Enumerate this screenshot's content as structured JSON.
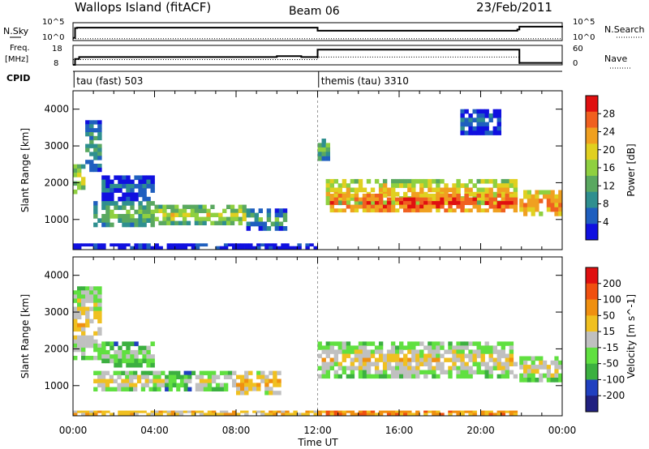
{
  "header": {
    "title": "Wallops Island (fitACF)",
    "beam": "Beam 06",
    "date": "23/Feb/2011"
  },
  "panel_labels": {
    "nsky": "N.Sky",
    "nsearch": "N.Search",
    "nsky_top": "10^5",
    "nsky_bottom": "10^0",
    "freq": "Freq.",
    "freq_unit": "[MHz]",
    "nave": "Nave",
    "cpid": "CPID",
    "freq_top": "18",
    "freq_bottom": "8",
    "nave_top": "60",
    "nave_bottom": "0"
  },
  "colors": {
    "power_scale": [
      "#1010e0",
      "#1f5fbf",
      "#2f8f8f",
      "#5aa860",
      "#8fd040",
      "#e0d020",
      "#f0a020",
      "#f06020",
      "#e01010"
    ],
    "velocity_scale": [
      "#202080",
      "#2040c0",
      "#3cb040",
      "#60e040",
      "#c0c0c0",
      "#f0c020",
      "#f09010",
      "#f05010",
      "#e01010"
    ]
  },
  "chart_data": [
    {
      "type": "line",
      "title": "",
      "x_range_hours": [
        0,
        24
      ],
      "series": [
        {
          "name": "N.Sky",
          "segments": [
            {
              "x": [
                0.0,
                0.1,
                0.2,
                11.9,
                12.0,
                21.8,
                21.9,
                24.0
              ],
              "y_frac": [
                0.15,
                0.7,
                0.72,
                0.72,
                0.55,
                0.62,
                0.78,
                0.74
              ]
            }
          ]
        },
        {
          "name": "N.Search",
          "segments": [
            {
              "x": [
                0.0,
                24.0
              ],
              "y_frac": [
                0.1,
                0.1
              ]
            }
          ]
        }
      ]
    },
    {
      "type": "line",
      "title": "",
      "x_range_hours": [
        0,
        24
      ],
      "series": [
        {
          "name": "Freq.",
          "segments": [
            {
              "x": [
                0.0,
                0.1,
                0.3,
                10.0,
                11.2,
                12.0,
                19.0,
                21.8,
                21.9,
                24.0
              ],
              "y_frac": [
                0.0,
                0.3,
                0.4,
                0.45,
                0.4,
                0.78,
                0.78,
                0.78,
                0.1,
                0.1
              ]
            }
          ]
        },
        {
          "name": "Nave",
          "segments": [
            {
              "x": [
                0.0,
                11.9,
                12.0,
                21.8,
                21.9,
                24.0
              ],
              "y_frac": [
                0.27,
                0.27,
                0.4,
                0.4,
                0.0,
                0.0
              ]
            }
          ]
        }
      ]
    },
    {
      "type": "heatmap",
      "title": "",
      "xlabel": "",
      "ylabel": "Slant Range [km]",
      "x_ticks": [
        "00:00",
        "04:00",
        "08:00",
        "12:00",
        "16:00",
        "20:00",
        "00:00"
      ],
      "y_ticks": [
        "1000",
        "2000",
        "3000",
        "4000"
      ],
      "ylim": [
        180,
        4500
      ],
      "colorbar": {
        "label": "Power [dB]",
        "ticks": [
          "28",
          "24",
          "20",
          "16",
          "12",
          "8",
          "4"
        ]
      },
      "cpid_labels": [
        {
          "x_hours": 0.05,
          "text": "tau (fast) 503"
        },
        {
          "x_hours": 12.05,
          "text": "themis (tau) 3310"
        }
      ],
      "bands": [
        {
          "x0": 0.0,
          "x1": 0.6,
          "r0": 1700,
          "r1": 2500,
          "level": 4
        },
        {
          "x0": 0.6,
          "x1": 1.4,
          "r0": 2300,
          "r1": 3700,
          "level": 2
        },
        {
          "x0": 1.4,
          "x1": 4.0,
          "r0": 1500,
          "r1": 2200,
          "level": 1
        },
        {
          "x0": 1.0,
          "x1": 4.0,
          "r0": 800,
          "r1": 1500,
          "level": 3
        },
        {
          "x0": 4.0,
          "x1": 8.5,
          "r0": 850,
          "r1": 1400,
          "level": 4
        },
        {
          "x0": 8.5,
          "x1": 10.5,
          "r0": 700,
          "r1": 1300,
          "level": 2
        },
        {
          "x0": 0.0,
          "x1": 12.0,
          "r0": 200,
          "r1": 350,
          "level": 1
        },
        {
          "x0": 12.0,
          "x1": 12.6,
          "r0": 2600,
          "r1": 3200,
          "level": 3
        },
        {
          "x0": 12.4,
          "x1": 21.8,
          "r0": 1400,
          "r1": 2100,
          "level": 5
        },
        {
          "x0": 12.6,
          "x1": 21.8,
          "r0": 1200,
          "r1": 1700,
          "level": 7
        },
        {
          "x0": 19.0,
          "x1": 21.0,
          "r0": 3300,
          "r1": 4000,
          "level": 1
        },
        {
          "x0": 21.9,
          "x1": 24.0,
          "r0": 1100,
          "r1": 1800,
          "level": 6
        }
      ]
    },
    {
      "type": "heatmap",
      "title": "",
      "xlabel": "Time UT",
      "ylabel": "Slant Range [km]",
      "x_ticks": [
        "00:00",
        "04:00",
        "08:00",
        "12:00",
        "16:00",
        "20:00",
        "00:00"
      ],
      "y_ticks": [
        "1000",
        "2000",
        "3000",
        "4000"
      ],
      "ylim": [
        180,
        4500
      ],
      "colorbar": {
        "label": "Velocity [m s^-1]",
        "ticks": [
          "200",
          "100",
          "50",
          "15",
          "-15",
          "-50",
          "-100",
          "-200"
        ]
      },
      "bands": [
        {
          "x0": 0.0,
          "x1": 1.4,
          "r0": 1700,
          "r1": 3700,
          "level": 4
        },
        {
          "x0": 1.4,
          "x1": 4.0,
          "r0": 1500,
          "r1": 2200,
          "level": 3
        },
        {
          "x0": 1.0,
          "x1": 4.5,
          "r0": 850,
          "r1": 1400,
          "level": 4
        },
        {
          "x0": 4.5,
          "x1": 6.0,
          "r0": 850,
          "r1": 1400,
          "level": 3
        },
        {
          "x0": 6.0,
          "x1": 8.0,
          "r0": 850,
          "r1": 1400,
          "level": 4
        },
        {
          "x0": 8.0,
          "x1": 10.2,
          "r0": 750,
          "r1": 1400,
          "level": 5
        },
        {
          "x0": 0.0,
          "x1": 12.0,
          "r0": 200,
          "r1": 320,
          "level": 6
        },
        {
          "x0": 12.0,
          "x1": 21.8,
          "r0": 1200,
          "r1": 2200,
          "level": 4
        },
        {
          "x0": 12.0,
          "x1": 21.8,
          "r0": 200,
          "r1": 320,
          "level": 7
        },
        {
          "x0": 21.9,
          "x1": 24.0,
          "r0": 1100,
          "r1": 1800,
          "level": 4
        }
      ]
    }
  ]
}
